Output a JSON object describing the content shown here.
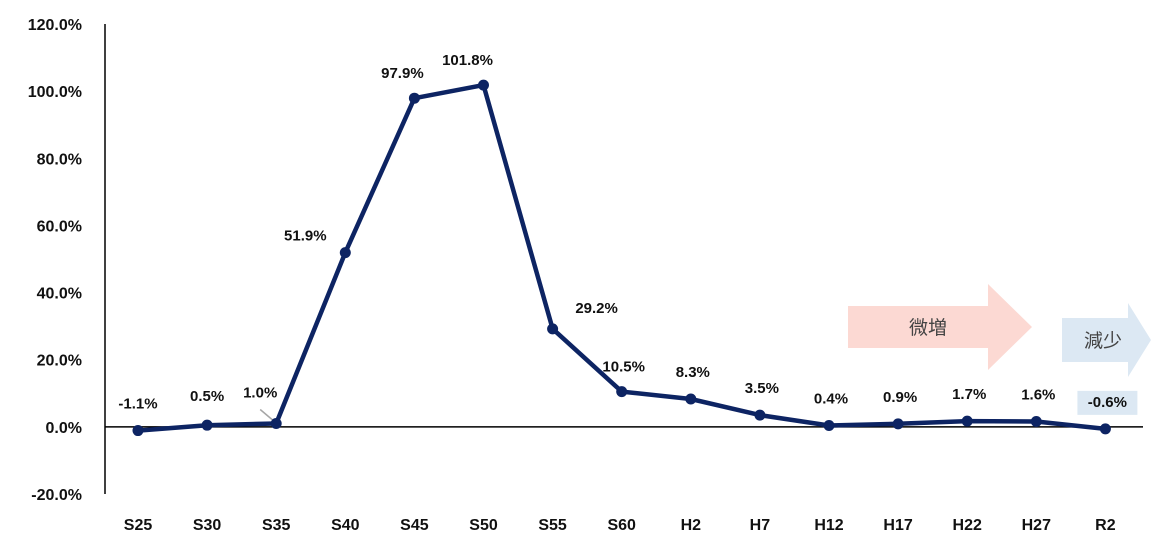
{
  "chart_data": {
    "type": "line",
    "categories": [
      "S25",
      "S30",
      "S35",
      "S40",
      "S45",
      "S50",
      "S55",
      "S60",
      "H2",
      "H7",
      "H12",
      "H17",
      "H22",
      "H27",
      "R2"
    ],
    "series": [
      {
        "values": [
          -1.1,
          0.5,
          1.0,
          51.9,
          97.9,
          101.8,
          29.2,
          10.5,
          8.3,
          3.5,
          0.4,
          0.9,
          1.7,
          1.6,
          -0.6
        ]
      }
    ],
    "data_labels": [
      "-1.1%",
      "0.5%",
      "1.0%",
      "51.9%",
      "97.9%",
      "101.8%",
      "29.2%",
      "10.5%",
      "8.3%",
      "3.5%",
      "0.4%",
      "0.9%",
      "1.7%",
      "1.6%",
      "-0.6%"
    ],
    "y_ticks": [
      -20,
      0,
      20,
      40,
      60,
      80,
      100,
      120
    ],
    "y_tick_labels": [
      "-20.0%",
      "0.0%",
      "20.0%",
      "40.0%",
      "60.0%",
      "80.0%",
      "100.0%",
      "120.0%"
    ],
    "ylim": [
      -20,
      120
    ],
    "title": "",
    "xlabel": "",
    "ylabel": "",
    "grid": false,
    "legend": "none",
    "colors": {
      "line": "#0d2463",
      "increase_arrow": "#fcd9d3",
      "decrease_arrow": "#dce8f3",
      "last_label_bg": "#dce8f3"
    },
    "annotations": [
      {
        "text": "微増",
        "shape": "right-arrow",
        "color": "#fcd9d3"
      },
      {
        "text": "減少",
        "shape": "right-arrow",
        "color": "#dce8f3"
      }
    ]
  }
}
